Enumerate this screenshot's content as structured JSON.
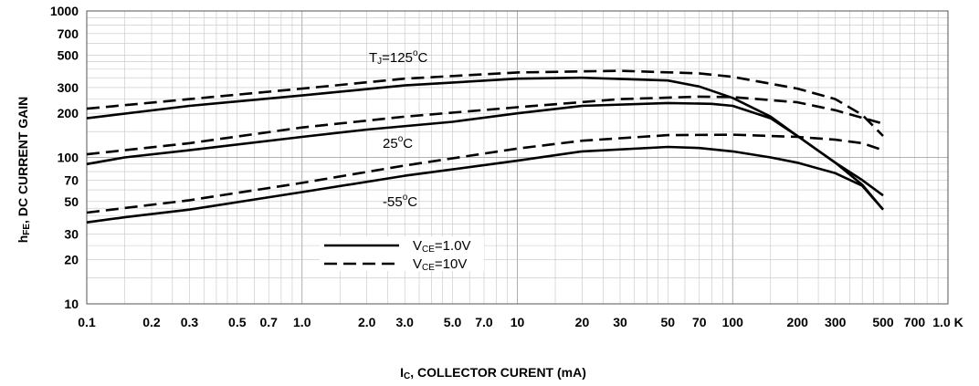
{
  "chart_data": {
    "type": "line",
    "xscale": "log",
    "yscale": "log",
    "xlim": [
      0.1,
      1000
    ],
    "ylim": [
      10,
      1000
    ],
    "grid": true,
    "xlabel_sub": "C",
    "xlabel_main": ", COLLECTOR CURENT (mA)",
    "ylabel_sub": "FE",
    "ylabel_main": ", DC CURRENT GAIN",
    "x_ticks": [
      {
        "value": 0.1,
        "label": "0.1"
      },
      {
        "value": 0.2,
        "label": "0.2"
      },
      {
        "value": 0.3,
        "label": "0.3"
      },
      {
        "value": 0.5,
        "label": "0.5"
      },
      {
        "value": 0.7,
        "label": "0.7"
      },
      {
        "value": 1,
        "label": "1.0"
      },
      {
        "value": 2,
        "label": "2.0"
      },
      {
        "value": 3,
        "label": "3.0"
      },
      {
        "value": 5,
        "label": "5.0"
      },
      {
        "value": 7,
        "label": "7.0"
      },
      {
        "value": 10,
        "label": "10"
      },
      {
        "value": 20,
        "label": "20"
      },
      {
        "value": 30,
        "label": "30"
      },
      {
        "value": 50,
        "label": "50"
      },
      {
        "value": 70,
        "label": "70"
      },
      {
        "value": 100,
        "label": "100"
      },
      {
        "value": 200,
        "label": "200"
      },
      {
        "value": 300,
        "label": "300"
      },
      {
        "value": 500,
        "label": "500"
      },
      {
        "value": 700,
        "label": "700"
      },
      {
        "value": 1000,
        "label": "1.0 K"
      }
    ],
    "y_ticks": [
      {
        "value": 10,
        "label": "10"
      },
      {
        "value": 20,
        "label": "20"
      },
      {
        "value": 30,
        "label": "30"
      },
      {
        "value": 50,
        "label": "50"
      },
      {
        "value": 70,
        "label": "70"
      },
      {
        "value": 100,
        "label": "100"
      },
      {
        "value": 200,
        "label": "200"
      },
      {
        "value": 300,
        "label": "300"
      },
      {
        "value": 500,
        "label": "500"
      },
      {
        "value": 700,
        "label": "700"
      },
      {
        "value": 1000,
        "label": "1000"
      }
    ],
    "legend": {
      "placement": "center-left",
      "entries": [
        {
          "label_sub": "CE",
          "label_main": "=1.0V",
          "style": "solid"
        },
        {
          "label_sub": "CE",
          "label_main": "=10V",
          "style": "dashed"
        }
      ]
    },
    "annotations": [
      {
        "text_pre": "T",
        "text_sub": "J",
        "text_main": "=125",
        "text_sup": "o",
        "text_post": "C",
        "x": 2.2,
        "y": 540
      },
      {
        "text_main": "25",
        "text_sup": "o",
        "text_post": "C",
        "x": 3.0,
        "y": 126
      },
      {
        "text_main": "-55",
        "text_sup": "o",
        "text_post": "C",
        "x": 3.0,
        "y": 54
      }
    ],
    "series": [
      {
        "condition": "125C",
        "style": "solid",
        "points": [
          [
            0.1,
            185
          ],
          [
            0.3,
            225
          ],
          [
            1,
            265
          ],
          [
            3,
            310
          ],
          [
            10,
            345
          ],
          [
            20,
            350
          ],
          [
            50,
            335
          ],
          [
            70,
            305
          ],
          [
            100,
            255
          ],
          [
            150,
            190
          ],
          [
            200,
            140
          ],
          [
            300,
            92
          ],
          [
            400,
            70
          ],
          [
            500,
            55
          ]
        ]
      },
      {
        "condition": "125C",
        "style": "dashed",
        "points": [
          [
            0.1,
            215
          ],
          [
            0.3,
            250
          ],
          [
            1,
            295
          ],
          [
            3,
            345
          ],
          [
            10,
            380
          ],
          [
            30,
            390
          ],
          [
            70,
            375
          ],
          [
            100,
            355
          ],
          [
            200,
            295
          ],
          [
            300,
            250
          ],
          [
            400,
            195
          ],
          [
            500,
            140
          ]
        ]
      },
      {
        "condition": "25C",
        "style": "solid",
        "points": [
          [
            0.1,
            90
          ],
          [
            0.15,
            100
          ],
          [
            0.3,
            112
          ],
          [
            1,
            138
          ],
          [
            2,
            155
          ],
          [
            5,
            175
          ],
          [
            10,
            200
          ],
          [
            20,
            225
          ],
          [
            50,
            235
          ],
          [
            80,
            232
          ],
          [
            100,
            225
          ],
          [
            150,
            185
          ],
          [
            200,
            140
          ],
          [
            300,
            92
          ],
          [
            400,
            65
          ],
          [
            500,
            44
          ]
        ]
      },
      {
        "condition": "25C",
        "style": "dashed",
        "points": [
          [
            0.1,
            105
          ],
          [
            0.3,
            125
          ],
          [
            1,
            160
          ],
          [
            3,
            190
          ],
          [
            10,
            220
          ],
          [
            30,
            250
          ],
          [
            70,
            260
          ],
          [
            100,
            258
          ],
          [
            200,
            238
          ],
          [
            300,
            210
          ],
          [
            500,
            170
          ]
        ]
      },
      {
        "condition": "-55C",
        "style": "solid",
        "points": [
          [
            0.1,
            36
          ],
          [
            0.15,
            39
          ],
          [
            0.3,
            44
          ],
          [
            1,
            58
          ],
          [
            3,
            75
          ],
          [
            10,
            95
          ],
          [
            20,
            110
          ],
          [
            50,
            118
          ],
          [
            70,
            116
          ],
          [
            100,
            110
          ],
          [
            150,
            100
          ],
          [
            200,
            92
          ],
          [
            300,
            78
          ],
          [
            400,
            64
          ],
          [
            500,
            44
          ]
        ]
      },
      {
        "condition": "-55C",
        "style": "dashed",
        "points": [
          [
            0.1,
            42
          ],
          [
            0.3,
            51
          ],
          [
            1,
            67
          ],
          [
            3,
            88
          ],
          [
            10,
            115
          ],
          [
            20,
            130
          ],
          [
            50,
            142
          ],
          [
            100,
            143
          ],
          [
            200,
            138
          ],
          [
            300,
            132
          ],
          [
            400,
            125
          ],
          [
            500,
            112
          ]
        ]
      }
    ]
  }
}
